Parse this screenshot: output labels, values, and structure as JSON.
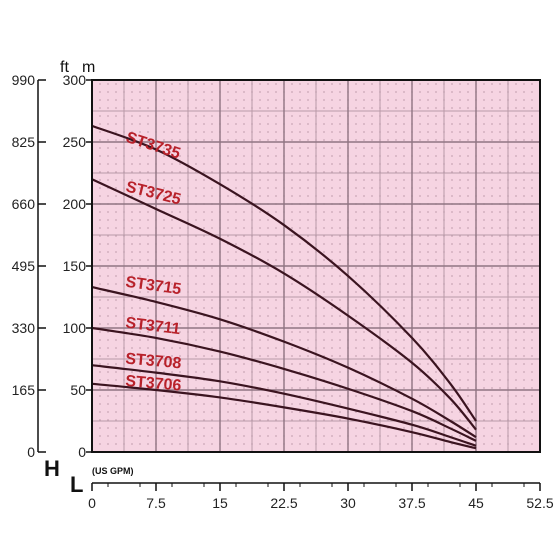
{
  "chart_data": {
    "type": "line",
    "xlabel": "L",
    "xunit": "(US GPM)",
    "ylabel": "H",
    "y_left_unit": "ft",
    "y_right_unit": "m",
    "xlim": [
      0,
      52.5
    ],
    "ylim": [
      0,
      300
    ],
    "x_ticks": [
      "0",
      "7.5",
      "15",
      "22.5",
      "30",
      "37.5",
      "45",
      "52.5"
    ],
    "y_ticks_m": [
      "0",
      "50",
      "100",
      "150",
      "200",
      "250",
      "300"
    ],
    "y_ticks_ft": [
      "0",
      "165",
      "330",
      "495",
      "660",
      "825",
      "990"
    ],
    "grid": true,
    "plot_background": "#f6d4e2",
    "line_color": "#3b1420",
    "label_color": "#b8212a",
    "series": [
      {
        "name": "ST3735",
        "x": [
          0,
          7.5,
          15,
          22.5,
          30,
          37.5,
          42,
          45
        ],
        "y": [
          263,
          244,
          216,
          183,
          142,
          92,
          55,
          25
        ]
      },
      {
        "name": "ST3725",
        "x": [
          0,
          7.5,
          15,
          22.5,
          30,
          37.5,
          42,
          45
        ],
        "y": [
          220,
          196,
          172,
          144,
          110,
          72,
          43,
          18
        ]
      },
      {
        "name": "ST3715",
        "x": [
          0,
          7.5,
          15,
          22.5,
          30,
          37.5,
          42,
          45
        ],
        "y": [
          133,
          121,
          107,
          89,
          68,
          43,
          25,
          12
        ]
      },
      {
        "name": "ST3711",
        "x": [
          0,
          7.5,
          15,
          22.5,
          30,
          37.5,
          42,
          45
        ],
        "y": [
          100,
          92,
          81,
          67,
          51,
          33,
          19,
          9
        ]
      },
      {
        "name": "ST3708",
        "x": [
          0,
          7.5,
          15,
          22.5,
          30,
          37.5,
          42,
          45
        ],
        "y": [
          70,
          64,
          57,
          47,
          35,
          22,
          12,
          5
        ]
      },
      {
        "name": "ST3706",
        "x": [
          0,
          7.5,
          15,
          22.5,
          30,
          37.5,
          42,
          45
        ],
        "y": [
          55,
          50,
          44,
          36,
          27,
          16,
          8,
          3
        ]
      }
    ]
  }
}
